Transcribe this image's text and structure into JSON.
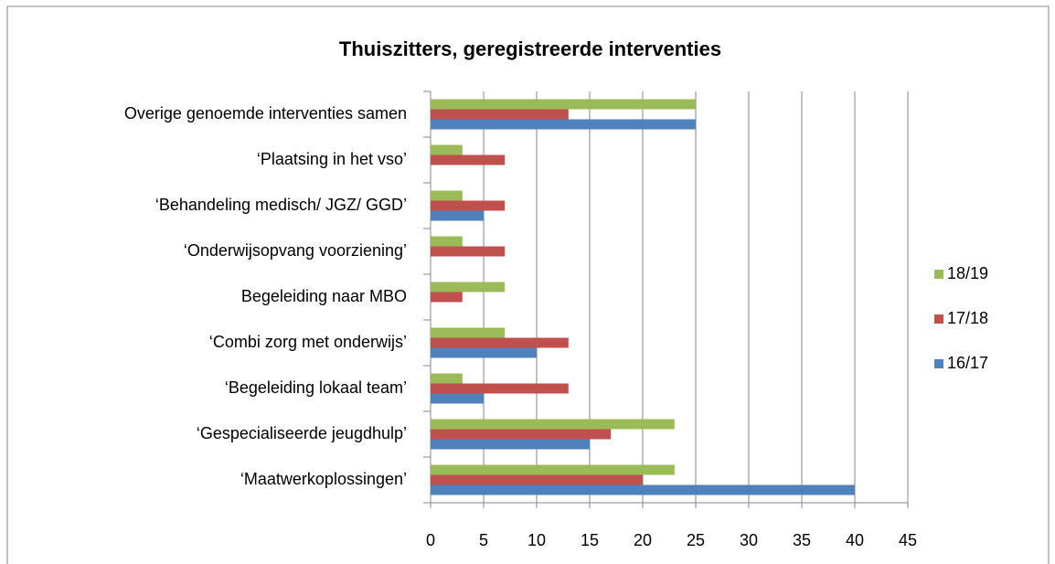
{
  "chart_data": {
    "type": "bar",
    "orientation": "horizontal",
    "title": "Thuiszitters, geregistreerde interventies",
    "categories": [
      "Overige genoemde interventies samen",
      "‘Plaatsing in het vso’",
      "‘Behandeling medisch/ JGZ/ GGD’",
      "‘Onderwijsopvang voorziening’",
      "Begeleiding naar MBO",
      "‘Combi zorg met onderwijs’",
      "‘Begeleiding lokaal team’",
      "‘Gespecialiseerde jeugdhulp’",
      "‘Maatwerkoplossingen’"
    ],
    "series": [
      {
        "name": "18/19",
        "color": "#9bbb59",
        "values": [
          25,
          3,
          3,
          3,
          7,
          7,
          3,
          23,
          23
        ]
      },
      {
        "name": "17/18",
        "color": "#c0504d",
        "values": [
          13,
          7,
          7,
          7,
          3,
          13,
          13,
          17,
          20
        ]
      },
      {
        "name": "16/17",
        "color": "#4f81bd",
        "values": [
          25,
          0,
          5,
          0,
          0,
          10,
          5,
          15,
          40
        ]
      }
    ],
    "xlim": [
      0,
      45
    ],
    "xticks": [
      0,
      5,
      10,
      15,
      20,
      25,
      30,
      35,
      40,
      45
    ],
    "grid": true,
    "legend": "right"
  }
}
